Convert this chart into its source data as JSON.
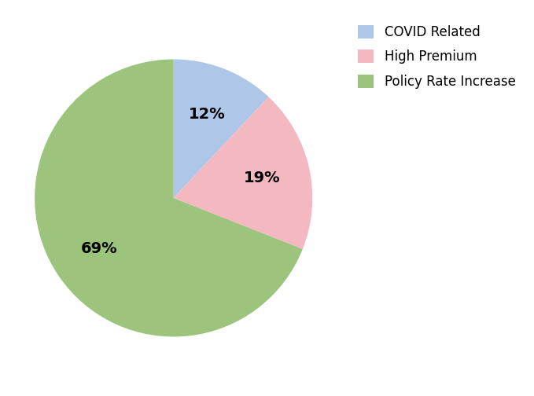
{
  "slices": [
    {
      "label": "COVID Related",
      "value": 12,
      "color": "#aec6e8"
    },
    {
      "label": "High Premium",
      "value": 19,
      "color": "#f4b8c1"
    },
    {
      "label": "Policy Rate Increase",
      "value": 69,
      "color": "#9dc47c"
    }
  ],
  "startangle": 90,
  "pct_fontsize": 14,
  "pct_fontweight": "bold",
  "legend_fontsize": 12,
  "background_color": "#ffffff"
}
